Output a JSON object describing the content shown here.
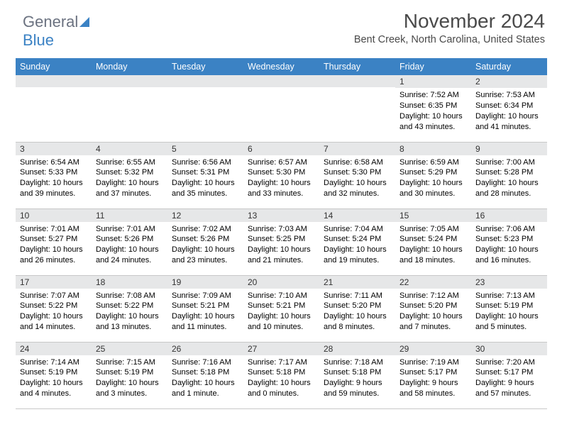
{
  "logo": {
    "part1": "General",
    "part2": "Blue"
  },
  "title": "November 2024",
  "location": "Bent Creek, North Carolina, United States",
  "dayNames": [
    "Sunday",
    "Monday",
    "Tuesday",
    "Wednesday",
    "Thursday",
    "Friday",
    "Saturday"
  ],
  "colors": {
    "headerBg": "#3b82c4",
    "headerText": "#ffffff",
    "dayNumBg": "#e6e7e8",
    "border": "#c8c8c8",
    "titleColor": "#4a4a4a",
    "logoGray": "#6b7280",
    "logoBlue": "#3b82c4"
  },
  "weeks": [
    [
      {
        "n": "",
        "sr": "",
        "ss": "",
        "dl": ""
      },
      {
        "n": "",
        "sr": "",
        "ss": "",
        "dl": ""
      },
      {
        "n": "",
        "sr": "",
        "ss": "",
        "dl": ""
      },
      {
        "n": "",
        "sr": "",
        "ss": "",
        "dl": ""
      },
      {
        "n": "",
        "sr": "",
        "ss": "",
        "dl": ""
      },
      {
        "n": "1",
        "sr": "Sunrise: 7:52 AM",
        "ss": "Sunset: 6:35 PM",
        "dl": "Daylight: 10 hours and 43 minutes."
      },
      {
        "n": "2",
        "sr": "Sunrise: 7:53 AM",
        "ss": "Sunset: 6:34 PM",
        "dl": "Daylight: 10 hours and 41 minutes."
      }
    ],
    [
      {
        "n": "3",
        "sr": "Sunrise: 6:54 AM",
        "ss": "Sunset: 5:33 PM",
        "dl": "Daylight: 10 hours and 39 minutes."
      },
      {
        "n": "4",
        "sr": "Sunrise: 6:55 AM",
        "ss": "Sunset: 5:32 PM",
        "dl": "Daylight: 10 hours and 37 minutes."
      },
      {
        "n": "5",
        "sr": "Sunrise: 6:56 AM",
        "ss": "Sunset: 5:31 PM",
        "dl": "Daylight: 10 hours and 35 minutes."
      },
      {
        "n": "6",
        "sr": "Sunrise: 6:57 AM",
        "ss": "Sunset: 5:30 PM",
        "dl": "Daylight: 10 hours and 33 minutes."
      },
      {
        "n": "7",
        "sr": "Sunrise: 6:58 AM",
        "ss": "Sunset: 5:30 PM",
        "dl": "Daylight: 10 hours and 32 minutes."
      },
      {
        "n": "8",
        "sr": "Sunrise: 6:59 AM",
        "ss": "Sunset: 5:29 PM",
        "dl": "Daylight: 10 hours and 30 minutes."
      },
      {
        "n": "9",
        "sr": "Sunrise: 7:00 AM",
        "ss": "Sunset: 5:28 PM",
        "dl": "Daylight: 10 hours and 28 minutes."
      }
    ],
    [
      {
        "n": "10",
        "sr": "Sunrise: 7:01 AM",
        "ss": "Sunset: 5:27 PM",
        "dl": "Daylight: 10 hours and 26 minutes."
      },
      {
        "n": "11",
        "sr": "Sunrise: 7:01 AM",
        "ss": "Sunset: 5:26 PM",
        "dl": "Daylight: 10 hours and 24 minutes."
      },
      {
        "n": "12",
        "sr": "Sunrise: 7:02 AM",
        "ss": "Sunset: 5:26 PM",
        "dl": "Daylight: 10 hours and 23 minutes."
      },
      {
        "n": "13",
        "sr": "Sunrise: 7:03 AM",
        "ss": "Sunset: 5:25 PM",
        "dl": "Daylight: 10 hours and 21 minutes."
      },
      {
        "n": "14",
        "sr": "Sunrise: 7:04 AM",
        "ss": "Sunset: 5:24 PM",
        "dl": "Daylight: 10 hours and 19 minutes."
      },
      {
        "n": "15",
        "sr": "Sunrise: 7:05 AM",
        "ss": "Sunset: 5:24 PM",
        "dl": "Daylight: 10 hours and 18 minutes."
      },
      {
        "n": "16",
        "sr": "Sunrise: 7:06 AM",
        "ss": "Sunset: 5:23 PM",
        "dl": "Daylight: 10 hours and 16 minutes."
      }
    ],
    [
      {
        "n": "17",
        "sr": "Sunrise: 7:07 AM",
        "ss": "Sunset: 5:22 PM",
        "dl": "Daylight: 10 hours and 14 minutes."
      },
      {
        "n": "18",
        "sr": "Sunrise: 7:08 AM",
        "ss": "Sunset: 5:22 PM",
        "dl": "Daylight: 10 hours and 13 minutes."
      },
      {
        "n": "19",
        "sr": "Sunrise: 7:09 AM",
        "ss": "Sunset: 5:21 PM",
        "dl": "Daylight: 10 hours and 11 minutes."
      },
      {
        "n": "20",
        "sr": "Sunrise: 7:10 AM",
        "ss": "Sunset: 5:21 PM",
        "dl": "Daylight: 10 hours and 10 minutes."
      },
      {
        "n": "21",
        "sr": "Sunrise: 7:11 AM",
        "ss": "Sunset: 5:20 PM",
        "dl": "Daylight: 10 hours and 8 minutes."
      },
      {
        "n": "22",
        "sr": "Sunrise: 7:12 AM",
        "ss": "Sunset: 5:20 PM",
        "dl": "Daylight: 10 hours and 7 minutes."
      },
      {
        "n": "23",
        "sr": "Sunrise: 7:13 AM",
        "ss": "Sunset: 5:19 PM",
        "dl": "Daylight: 10 hours and 5 minutes."
      }
    ],
    [
      {
        "n": "24",
        "sr": "Sunrise: 7:14 AM",
        "ss": "Sunset: 5:19 PM",
        "dl": "Daylight: 10 hours and 4 minutes."
      },
      {
        "n": "25",
        "sr": "Sunrise: 7:15 AM",
        "ss": "Sunset: 5:19 PM",
        "dl": "Daylight: 10 hours and 3 minutes."
      },
      {
        "n": "26",
        "sr": "Sunrise: 7:16 AM",
        "ss": "Sunset: 5:18 PM",
        "dl": "Daylight: 10 hours and 1 minute."
      },
      {
        "n": "27",
        "sr": "Sunrise: 7:17 AM",
        "ss": "Sunset: 5:18 PM",
        "dl": "Daylight: 10 hours and 0 minutes."
      },
      {
        "n": "28",
        "sr": "Sunrise: 7:18 AM",
        "ss": "Sunset: 5:18 PM",
        "dl": "Daylight: 9 hours and 59 minutes."
      },
      {
        "n": "29",
        "sr": "Sunrise: 7:19 AM",
        "ss": "Sunset: 5:17 PM",
        "dl": "Daylight: 9 hours and 58 minutes."
      },
      {
        "n": "30",
        "sr": "Sunrise: 7:20 AM",
        "ss": "Sunset: 5:17 PM",
        "dl": "Daylight: 9 hours and 57 minutes."
      }
    ]
  ]
}
